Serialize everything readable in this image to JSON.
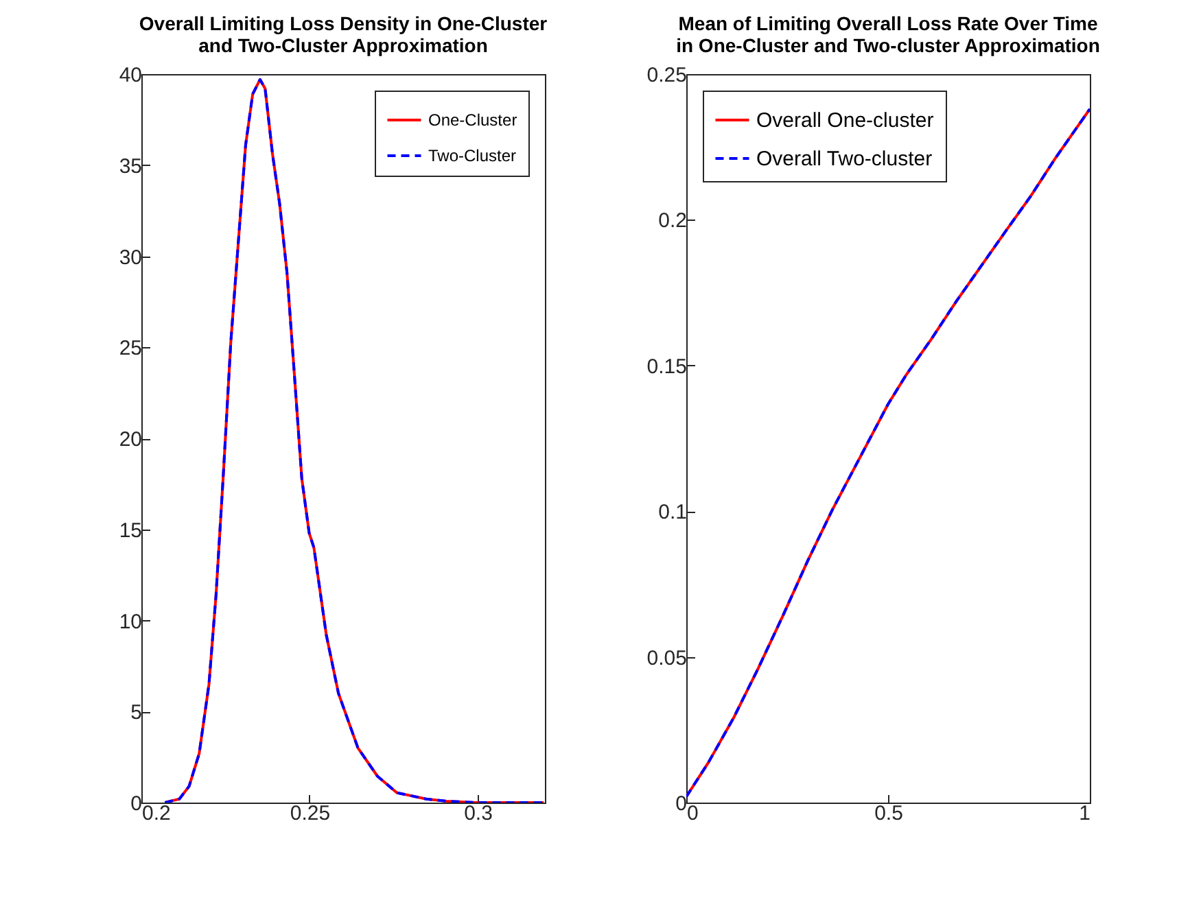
{
  "chart_data": [
    {
      "type": "line",
      "title": "Overall Limiting Loss Density in One-Cluster\nand Two-Cluster Approximation",
      "legend": "top right",
      "grid": false,
      "x": [
        0.207,
        0.2113,
        0.2142,
        0.2172,
        0.2201,
        0.2222,
        0.2244,
        0.2266,
        0.2288,
        0.231,
        0.2331,
        0.2353,
        0.2368,
        0.239,
        0.2411,
        0.2433,
        0.2455,
        0.2477,
        0.2499,
        0.2513,
        0.255,
        0.2586,
        0.2644,
        0.2702,
        0.276,
        0.2847,
        0.2906,
        0.2993,
        0.3196
      ],
      "series": [
        {
          "name": "One-Cluster",
          "color": "#ff0000",
          "line_style": "solid",
          "values": [
            0,
            0.2,
            0.9,
            2.7,
            6.5,
            11.4,
            18.1,
            25.3,
            30.7,
            36.1,
            38.9,
            39.7,
            39.2,
            35.6,
            32.9,
            29.1,
            23.5,
            17.8,
            14.8,
            14.0,
            9.2,
            6.0,
            3.0,
            1.45,
            0.54,
            0.2,
            0.08,
            0,
            0
          ]
        },
        {
          "name": "Two-Cluster",
          "color": "#0000ff",
          "line_style": "dashed",
          "values": [
            0,
            0.2,
            0.9,
            2.7,
            6.5,
            11.4,
            18.1,
            25.3,
            30.7,
            36.1,
            38.9,
            39.7,
            39.2,
            35.6,
            32.9,
            29.1,
            23.5,
            17.8,
            14.8,
            14.0,
            9.2,
            6.0,
            3.0,
            1.45,
            0.54,
            0.2,
            0.08,
            0,
            0
          ]
        }
      ],
      "xlim": [
        0.2,
        0.32
      ],
      "xticks": [
        0.2,
        0.25,
        0.3
      ],
      "ylim": [
        0,
        40
      ],
      "yticks": [
        0,
        5,
        10,
        15,
        20,
        25,
        30,
        35,
        40
      ]
    },
    {
      "type": "line",
      "title": "Mean of Limiting Overall Loss Rate Over Time\nin One-Cluster and Two-cluster Approximation",
      "legend": "top left",
      "grid": false,
      "x": [
        0,
        0.055,
        0.117,
        0.178,
        0.239,
        0.301,
        0.362,
        0.423,
        0.5,
        0.546,
        0.607,
        0.669,
        0.73,
        0.791,
        0.853,
        0.914,
        1
      ],
      "series": [
        {
          "name": "Overall One-cluster",
          "color": "#ff0000",
          "line_style": "solid",
          "values": [
            0.002,
            0.0138,
            0.029,
            0.046,
            0.064,
            0.083,
            0.1005,
            0.1165,
            0.1367,
            0.147,
            0.159,
            0.172,
            0.184,
            0.196,
            0.208,
            0.221,
            0.238
          ]
        },
        {
          "name": "Overall Two-cluster",
          "color": "#0000ff",
          "line_style": "dashed",
          "values": [
            0.002,
            0.0138,
            0.029,
            0.046,
            0.064,
            0.083,
            0.1005,
            0.1165,
            0.1367,
            0.147,
            0.159,
            0.172,
            0.184,
            0.196,
            0.208,
            0.221,
            0.238
          ]
        }
      ],
      "xlim": [
        0,
        1
      ],
      "xticks": [
        0,
        0.5,
        1
      ],
      "ylim": [
        0,
        0.25
      ],
      "yticks": [
        0,
        0.05,
        0.1,
        0.15,
        0.2,
        0.25
      ]
    }
  ]
}
